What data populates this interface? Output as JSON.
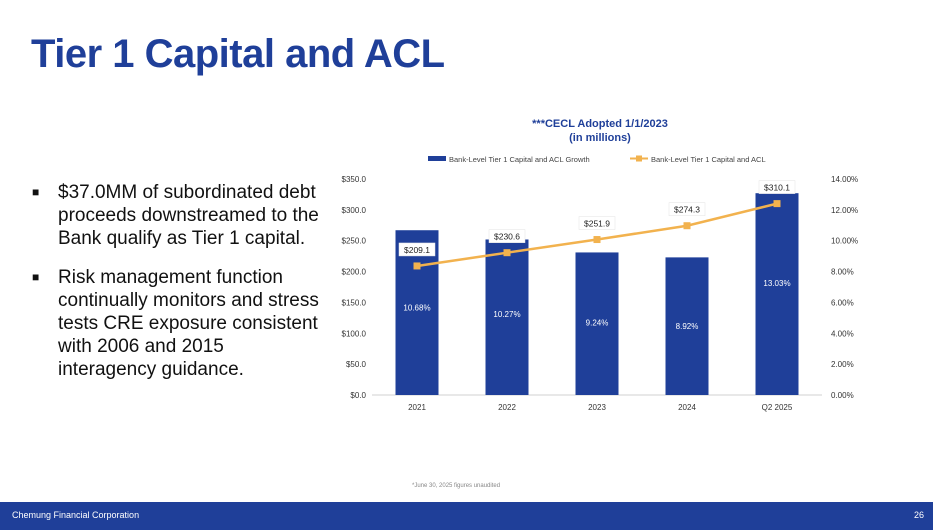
{
  "page": {
    "title": "Tier 1 Capital and ACL",
    "bullets": [
      "$37.0MM of subordinated debt proceeds downstreamed to the Bank qualify as Tier 1 capital.",
      "Risk management function continually monitors and stress tests CRE exposure consistent with 2006 and 2015 interagency guidance."
    ],
    "footnote": "*June 30, 2025 figures unaudited",
    "footer_left": "Chemung Financial Corporation",
    "footer_right": "26"
  },
  "colors": {
    "accent": "#1f3f99",
    "bar": "#1f3f99",
    "line": "#f2b24e"
  },
  "chart_data": {
    "type": "bar+line",
    "title_line1": "***CECL Adopted 1/1/2023",
    "title_line2": "(in millions)",
    "categories": [
      "2021",
      "2022",
      "2023",
      "2024",
      "Q2 2025"
    ],
    "series": [
      {
        "name": "Bank-Level Tier 1 Capital and ACL Growth",
        "kind": "bar",
        "axis": "left",
        "values": [
          267,
          252,
          231,
          223,
          327
        ],
        "labels": [
          "10.68%",
          "10.27%",
          "9.24%",
          "8.92%",
          "13.03%"
        ]
      },
      {
        "name": "Bank-Level Tier 1 Capital and ACL",
        "kind": "line",
        "axis": "left",
        "values": [
          209.1,
          230.6,
          251.9,
          274.3,
          310.1
        ],
        "labels": [
          "$209.1",
          "$230.6",
          "$251.9",
          "$274.3",
          "$310.1"
        ]
      }
    ],
    "left_axis": {
      "min": 0,
      "max": 350,
      "step": 50,
      "ticks": [
        "$0.0",
        "$50.0",
        "$100.0",
        "$150.0",
        "$200.0",
        "$250.0",
        "$300.0",
        "$350.0"
      ]
    },
    "right_axis": {
      "min": 0,
      "max": 14,
      "step": 2,
      "ticks": [
        "0.00%",
        "2.00%",
        "4.00%",
        "6.00%",
        "8.00%",
        "10.00%",
        "12.00%",
        "14.00%"
      ]
    },
    "legend_position": "top"
  }
}
